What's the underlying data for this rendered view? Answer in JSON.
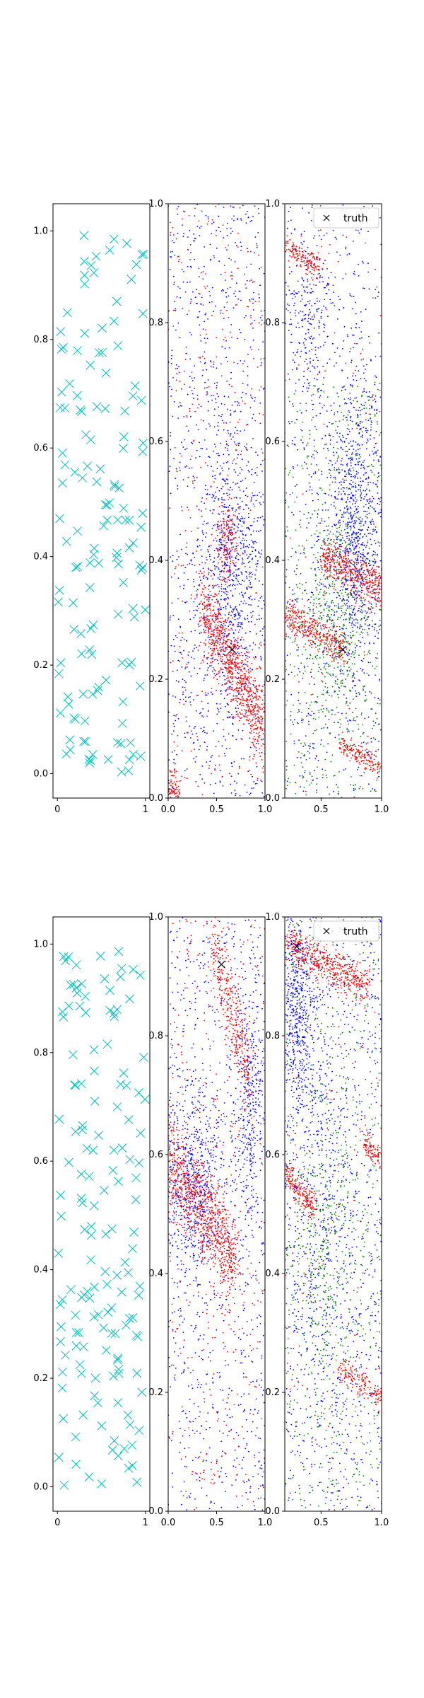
{
  "chart_data": [
    {
      "type": "scatter",
      "row": 1,
      "marker": "x",
      "color": "#00bfbf",
      "xlim": [
        -0.05,
        1.05
      ],
      "ylim": [
        -0.045,
        1.05
      ],
      "xticks": [
        0,
        1
      ],
      "xtick_labels": [
        "0",
        "1"
      ],
      "yticks": [
        0,
        0.2,
        0.4,
        0.6,
        0.8,
        1.0
      ],
      "ytick_labels": [
        "0.0",
        "0.2",
        "0.4",
        "0.6",
        "0.8",
        "1.0"
      ],
      "n_points": 140,
      "legend": null
    },
    {
      "type": "scatter",
      "row": 1,
      "marker": "dot",
      "xlim": [
        0,
        1
      ],
      "ylim": [
        0,
        1
      ],
      "xticks": [
        0,
        0.5,
        1
      ],
      "xtick_labels": [
        "0.0",
        "0.5",
        "1.0"
      ],
      "yticks": [
        0,
        0.2,
        0.4,
        0.6,
        0.8,
        1.0
      ],
      "ytick_labels": [
        "0.0",
        "0.2",
        "0.4",
        "0.6",
        "0.8",
        "1.0"
      ],
      "series": [
        {
          "color": "#0000ff",
          "n_points": 1800
        },
        {
          "color": "#ff0000",
          "n_points": 1400
        }
      ],
      "truth": [
        0.66,
        0.25
      ],
      "legend": null
    },
    {
      "type": "scatter",
      "row": 1,
      "marker": "dot",
      "xlim": [
        0.2,
        1
      ],
      "ylim": [
        0,
        1
      ],
      "xticks": [
        0.5,
        1
      ],
      "xtick_labels": [
        "0.5",
        "1.0"
      ],
      "yticks": [
        0,
        0.2,
        0.4,
        0.6,
        0.8,
        1.0
      ],
      "ytick_labels": [
        "0.0",
        "0.2",
        "0.4",
        "0.6",
        "0.8",
        "1.0"
      ],
      "series": [
        {
          "color": "#0000ff",
          "n_points": 1800
        },
        {
          "color": "#008000",
          "n_points": 900
        },
        {
          "color": "#ff0000",
          "n_points": 1200
        }
      ],
      "truth": [
        0.68,
        0.25
      ],
      "legend": {
        "placement": "top-right",
        "label": "truth"
      }
    },
    {
      "type": "scatter",
      "row": 2,
      "marker": "x",
      "color": "#00bfbf",
      "xlim": [
        -0.05,
        1.05
      ],
      "ylim": [
        -0.045,
        1.05
      ],
      "xticks": [
        0,
        1
      ],
      "xtick_labels": [
        "0",
        "1"
      ],
      "yticks": [
        0,
        0.2,
        0.4,
        0.6,
        0.8,
        1.0
      ],
      "ytick_labels": [
        "0.0",
        "0.2",
        "0.4",
        "0.6",
        "0.8",
        "1.0"
      ],
      "n_points": 150,
      "legend": null
    },
    {
      "type": "scatter",
      "row": 2,
      "marker": "dot",
      "xlim": [
        0,
        1
      ],
      "ylim": [
        0,
        1
      ],
      "xticks": [
        0,
        0.5,
        1
      ],
      "xtick_labels": [
        "0.0",
        "0.5",
        "1.0"
      ],
      "yticks": [
        0,
        0.2,
        0.4,
        0.6,
        0.8,
        1.0
      ],
      "ytick_labels": [
        "0.0",
        "0.2",
        "0.4",
        "0.6",
        "0.8",
        "1.0"
      ],
      "series": [
        {
          "color": "#0000ff",
          "n_points": 1800
        },
        {
          "color": "#ff0000",
          "n_points": 1600
        }
      ],
      "truth": [
        0.55,
        0.92
      ],
      "legend": null
    },
    {
      "type": "scatter",
      "row": 2,
      "marker": "dot",
      "xlim": [
        0.2,
        1
      ],
      "ylim": [
        0,
        1
      ],
      "xticks": [
        0.5,
        1
      ],
      "xtick_labels": [
        "0.5",
        "1.0"
      ],
      "yticks": [
        0,
        0.2,
        0.4,
        0.6,
        0.8,
        1.0
      ],
      "ytick_labels": [
        "0.0",
        "0.2",
        "0.4",
        "0.6",
        "0.8",
        "1.0"
      ],
      "series": [
        {
          "color": "#0000ff",
          "n_points": 1800
        },
        {
          "color": "#008000",
          "n_points": 900
        },
        {
          "color": "#ff0000",
          "n_points": 1200
        }
      ],
      "truth": [
        0.3,
        0.95
      ],
      "legend": {
        "placement": "top-right",
        "label": "truth"
      }
    }
  ]
}
